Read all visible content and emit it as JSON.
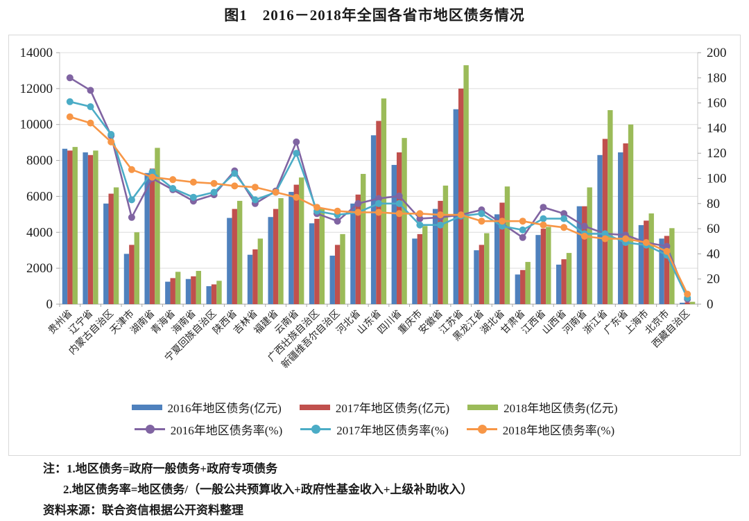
{
  "page": {
    "title": "图1　2016－2018年全国各省市地区债务情况"
  },
  "notes": {
    "line1": "注：1.地区债务=政府一般债务+政府专项债务",
    "line2": "2.地区债务率=地区债务/（一般公共预算收入+政府性基金收入+上级补助收入）",
    "source": "资料来源：联合资信根据公开资料整理"
  },
  "chart_data": {
    "type": "combo-bar-line",
    "title": "图1　2016－2018年全国各省市地区债务情况",
    "grid": true,
    "legend_position": "bottom",
    "categories": [
      "贵州省",
      "辽宁省",
      "内蒙古自治区",
      "天津市",
      "湖南省",
      "青海省",
      "海南省",
      "宁夏回族自治区",
      "陕西省",
      "吉林省",
      "福建省",
      "云南省",
      "广西壮族自治区",
      "新疆维吾尔自治区",
      "河北省",
      "山东省",
      "四川省",
      "重庆市",
      "安徽省",
      "江苏省",
      "黑龙江省",
      "湖北省",
      "甘肃省",
      "江西省",
      "山西省",
      "河南省",
      "浙江省",
      "广东省",
      "上海市",
      "北京市",
      "西藏自治区"
    ],
    "left_axis": {
      "min": 0,
      "max": 14000,
      "step": 2000,
      "ticks": [
        "0",
        "2000",
        "4000",
        "6000",
        "8000",
        "10000",
        "12000",
        "14000"
      ]
    },
    "right_axis": {
      "min": 0,
      "max": 200,
      "step": 20,
      "ticks": [
        "0",
        "20",
        "40",
        "60",
        "80",
        "100",
        "120",
        "140",
        "160",
        "180",
        "200"
      ]
    },
    "bar_series": [
      {
        "name": "2016年地区债务(亿元)",
        "color": "#4F81BD",
        "axis": "left",
        "values": [
          8650,
          8450,
          5600,
          2800,
          7300,
          1250,
          1400,
          1000,
          4800,
          2750,
          4850,
          6250,
          4500,
          2700,
          5600,
          9400,
          7750,
          3650,
          5300,
          10850,
          3000,
          5000,
          1650,
          3850,
          2200,
          5450,
          8300,
          8450,
          4400,
          3650,
          80
        ]
      },
      {
        "name": "2017年地区债务(亿元)",
        "color": "#C0504D",
        "axis": "left",
        "values": [
          8550,
          8300,
          6150,
          3300,
          7550,
          1450,
          1550,
          1100,
          5300,
          3050,
          5300,
          6650,
          4750,
          3300,
          6100,
          10200,
          8450,
          3900,
          5750,
          12000,
          3300,
          5650,
          1900,
          4200,
          2500,
          5450,
          9200,
          8950,
          4650,
          3800,
          100
        ]
      },
      {
        "name": "2018年地区债务(亿元)",
        "color": "#9BBB59",
        "axis": "left",
        "values": [
          8750,
          8550,
          6500,
          4000,
          8700,
          1800,
          1850,
          1300,
          5750,
          3650,
          5900,
          7050,
          5350,
          3900,
          7250,
          11450,
          9250,
          4350,
          6600,
          13300,
          3950,
          6550,
          2350,
          4300,
          2850,
          6500,
          10800,
          10000,
          5050,
          4230,
          130
        ]
      }
    ],
    "line_series": [
      {
        "name": "2016年地区债务率(%)",
        "color": "#8064A2",
        "axis": "right",
        "values": [
          180,
          170,
          134,
          69,
          100,
          91,
          82,
          87,
          106,
          80,
          90,
          129,
          72,
          66,
          80,
          84,
          86,
          68,
          69,
          71,
          75,
          64,
          53,
          77,
          72,
          62,
          56,
          55,
          49,
          46,
          4
        ]
      },
      {
        "name": "2017年地区债务率(%)",
        "color": "#4BACC6",
        "axis": "right",
        "values": [
          161,
          157,
          135,
          83,
          105,
          92,
          85,
          89,
          104,
          83,
          89,
          120,
          74,
          71,
          73,
          80,
          80,
          63,
          63,
          70,
          72,
          62,
          59,
          68,
          68,
          56,
          56,
          49,
          47,
          39,
          5
        ]
      },
      {
        "name": "2018年地区债务率(%)",
        "color": "#F79646",
        "axis": "right",
        "values": [
          149,
          144,
          129,
          107,
          101,
          99,
          97,
          96,
          94,
          93,
          89,
          85,
          77,
          74,
          73,
          73,
          72,
          72,
          71,
          71,
          66,
          66,
          66,
          63,
          61,
          54,
          52,
          52,
          49,
          42,
          8
        ]
      }
    ]
  }
}
